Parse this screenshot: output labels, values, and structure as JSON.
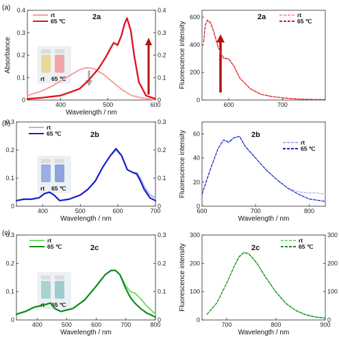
{
  "panel_labels": [
    "(a)",
    "(b)",
    "(c)"
  ],
  "legend": {
    "rt": "rt",
    "hot": "65 ℃"
  },
  "vial_labels": {
    "rt": "rt",
    "hot": "65 ℃"
  },
  "colors": {
    "a_rt": "#f4a0a0",
    "a_hot": "#e0141e",
    "a_arrow_up": "#b0140e",
    "a_arrow_down": "#a9a9a9",
    "b_rt": "#a8b4f0",
    "b_hot": "#1520c8",
    "c_rt": "#7de070",
    "c_hot": "#0f8a1e"
  },
  "chart_data": [
    {
      "id": "a-abs",
      "type": "line",
      "annotation": "2a",
      "xlabel": "Wavelength / nm",
      "ylabel": "Absorbance",
      "xlim": [
        330,
        600
      ],
      "ylim": [
        0,
        0.4
      ],
      "xticks": [
        400,
        500,
        600
      ],
      "yticks": [
        0,
        0.1,
        0.2,
        0.3,
        0.4
      ],
      "yticks_right": [
        0,
        0.1,
        0.2,
        0.3,
        0.4
      ],
      "legend_position": "top-left",
      "series": [
        {
          "name": "rt",
          "style": "solid",
          "x": [
            330,
            360,
            380,
            400,
            420,
            440,
            455,
            470,
            490,
            510,
            530,
            550,
            570,
            600
          ],
          "y": [
            0.02,
            0.04,
            0.06,
            0.085,
            0.11,
            0.135,
            0.144,
            0.14,
            0.115,
            0.08,
            0.045,
            0.02,
            0.01,
            0.0
          ]
        },
        {
          "name": "65 ℃",
          "style": "solid",
          "x": [
            330,
            360,
            400,
            440,
            460,
            480,
            495,
            505,
            512,
            520,
            528,
            535,
            540,
            548,
            555,
            565,
            580,
            600
          ],
          "y": [
            0.005,
            0.01,
            0.02,
            0.05,
            0.09,
            0.14,
            0.19,
            0.23,
            0.255,
            0.245,
            0.285,
            0.34,
            0.365,
            0.31,
            0.2,
            0.08,
            0.02,
            0.005
          ]
        }
      ]
    },
    {
      "id": "a-fl",
      "type": "line",
      "annotation": "2a",
      "xlabel": "",
      "ylabel": "Fluorescence intensity",
      "xlim": [
        550,
        780
      ],
      "ylim": [
        0,
        650
      ],
      "xticks": [
        600,
        700
      ],
      "yticks": [
        0,
        200,
        400,
        600
      ],
      "legend_position": "top-right",
      "series": [
        {
          "name": "rt",
          "style": "dashed",
          "x": [
            553,
            556,
            560,
            566,
            572,
            580,
            590,
            600,
            610,
            620,
            640,
            660,
            680,
            700,
            720,
            740,
            760,
            780
          ],
          "y": [
            420,
            540,
            575,
            555,
            490,
            380,
            300,
            295,
            240,
            160,
            80,
            40,
            25,
            15,
            10,
            5,
            4,
            3
          ]
        },
        {
          "name": "65 ℃",
          "style": "dashed",
          "x": [
            553,
            556,
            560,
            566,
            572,
            580,
            590,
            600,
            610,
            620,
            640,
            660,
            680,
            700,
            720,
            740,
            760,
            780
          ],
          "y": [
            420,
            540,
            580,
            560,
            495,
            385,
            305,
            298,
            243,
            162,
            82,
            42,
            26,
            16,
            10,
            6,
            4,
            3
          ]
        }
      ]
    },
    {
      "id": "b-abs",
      "type": "line",
      "annotation": "2b",
      "xlabel": "Wavelength / nm",
      "ylabel": "Absorbance",
      "xlim": [
        330,
        700
      ],
      "ylim": [
        0,
        0.3
      ],
      "xticks": [
        400,
        500,
        600,
        700
      ],
      "yticks": [
        0,
        0.1,
        0.2,
        0.3
      ],
      "yticks_right": [
        0,
        0.1,
        0.2,
        0.3
      ],
      "legend_position": "top-left",
      "series": [
        {
          "name": "rt",
          "style": "solid",
          "x": [
            330,
            350,
            370,
            390,
            405,
            418,
            430,
            445,
            470,
            500,
            520,
            540,
            560,
            580,
            595,
            610,
            625,
            640,
            650,
            660,
            670,
            685,
            700
          ],
          "y": [
            0.02,
            0.025,
            0.025,
            0.03,
            0.045,
            0.05,
            0.04,
            0.02,
            0.025,
            0.04,
            0.06,
            0.09,
            0.14,
            0.18,
            0.2,
            0.18,
            0.13,
            0.12,
            0.12,
            0.1,
            0.07,
            0.04,
            0.03
          ]
        },
        {
          "name": "65 ℃",
          "style": "solid",
          "x": [
            330,
            350,
            370,
            390,
            405,
            418,
            430,
            445,
            470,
            500,
            520,
            540,
            560,
            580,
            595,
            610,
            625,
            640,
            650,
            660,
            670,
            685,
            700
          ],
          "y": [
            0.02,
            0.025,
            0.025,
            0.03,
            0.045,
            0.05,
            0.04,
            0.02,
            0.025,
            0.04,
            0.06,
            0.09,
            0.14,
            0.18,
            0.205,
            0.18,
            0.13,
            0.12,
            0.115,
            0.09,
            0.06,
            0.03,
            0.02
          ]
        }
      ]
    },
    {
      "id": "b-fl",
      "type": "line",
      "annotation": "2b",
      "xlabel": "Wavelength / nm",
      "ylabel": "Fluorescence intensity",
      "xlim": [
        600,
        830
      ],
      "ylim": [
        0,
        70
      ],
      "xticks": [
        600,
        700,
        800
      ],
      "yticks": [
        0,
        20,
        40,
        60
      ],
      "legend_position": "top-right",
      "series": [
        {
          "name": "rt",
          "style": "dashed",
          "x": [
            600,
            615,
            630,
            640,
            650,
            660,
            670,
            680,
            690,
            700,
            720,
            740,
            760,
            780,
            800,
            815,
            830
          ],
          "y": [
            10,
            30,
            48,
            55,
            54,
            57,
            58,
            50,
            45,
            40,
            30,
            22,
            15,
            12,
            11,
            11,
            10
          ]
        },
        {
          "name": "65 ℃",
          "style": "dashed",
          "x": [
            600,
            615,
            630,
            640,
            650,
            660,
            670,
            680,
            690,
            700,
            720,
            740,
            760,
            780,
            800,
            815,
            830
          ],
          "y": [
            10,
            30,
            48,
            55,
            53,
            57,
            58,
            50,
            45,
            40,
            30,
            22,
            15,
            10,
            6,
            5,
            4
          ]
        }
      ]
    },
    {
      "id": "c-abs",
      "type": "line",
      "annotation": "2c",
      "xlabel": "Wavelength / nm",
      "ylabel": "Absorbance",
      "xlim": [
        330,
        800
      ],
      "ylim": [
        0,
        0.3
      ],
      "xticks": [
        400,
        500,
        600,
        700,
        800
      ],
      "yticks": [
        0,
        0.1,
        0.2,
        0.3
      ],
      "yticks_right": [
        0,
        0.1,
        0.2,
        0.3
      ],
      "legend_position": "top-left",
      "series": [
        {
          "name": "rt",
          "style": "solid",
          "x": [
            330,
            360,
            390,
            410,
            430,
            445,
            460,
            480,
            520,
            560,
            600,
            630,
            650,
            665,
            680,
            700,
            715,
            730,
            750,
            770,
            790,
            800
          ],
          "y": [
            0.02,
            0.03,
            0.045,
            0.05,
            0.055,
            0.06,
            0.04,
            0.03,
            0.04,
            0.07,
            0.12,
            0.16,
            0.175,
            0.175,
            0.16,
            0.12,
            0.1,
            0.095,
            0.075,
            0.05,
            0.03,
            0.02
          ]
        },
        {
          "name": "65 ℃",
          "style": "solid",
          "x": [
            330,
            360,
            390,
            410,
            430,
            445,
            460,
            480,
            520,
            560,
            600,
            630,
            650,
            665,
            680,
            700,
            715,
            730,
            750,
            770,
            790,
            800
          ],
          "y": [
            0.02,
            0.03,
            0.045,
            0.05,
            0.055,
            0.06,
            0.04,
            0.03,
            0.04,
            0.07,
            0.12,
            0.16,
            0.175,
            0.175,
            0.16,
            0.11,
            0.08,
            0.06,
            0.04,
            0.025,
            0.015,
            0.01
          ]
        }
      ]
    },
    {
      "id": "c-fl",
      "type": "line",
      "annotation": "2c",
      "xlabel": "Wavelength / nm",
      "ylabel": "Fluorescence intensity",
      "xlim": [
        650,
        900
      ],
      "ylim": [
        0,
        300
      ],
      "xticks": [
        700,
        800,
        900
      ],
      "yticks": [
        0,
        100,
        200,
        300
      ],
      "yticks_right": [
        0,
        100,
        200,
        300
      ],
      "legend_position": "top-right",
      "series": [
        {
          "name": "rt",
          "style": "dashed",
          "x": [
            660,
            680,
            700,
            715,
            725,
            735,
            745,
            760,
            780,
            800,
            820,
            840,
            860,
            880,
            900
          ],
          "y": [
            20,
            60,
            130,
            190,
            225,
            240,
            235,
            205,
            150,
            100,
            60,
            35,
            20,
            12,
            8
          ]
        },
        {
          "name": "65 ℃",
          "style": "dashed",
          "x": [
            660,
            680,
            700,
            715,
            725,
            735,
            745,
            760,
            780,
            800,
            820,
            840,
            860,
            880,
            900
          ],
          "y": [
            20,
            60,
            130,
            188,
            222,
            238,
            233,
            203,
            148,
            98,
            58,
            33,
            18,
            10,
            6
          ]
        }
      ]
    }
  ]
}
